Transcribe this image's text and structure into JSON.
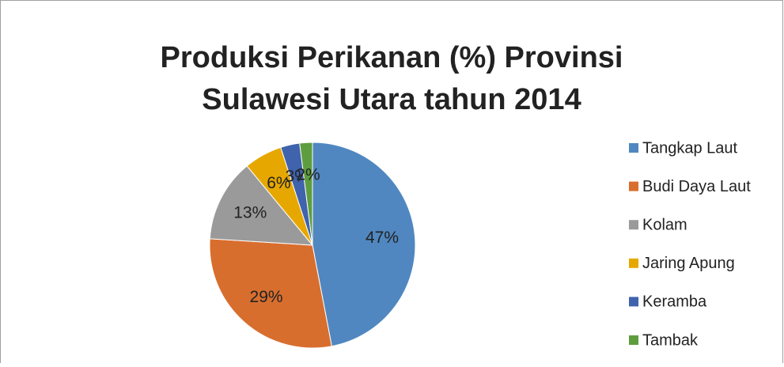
{
  "chart_data": {
    "type": "pie",
    "title": [
      "Produksi Perikanan (%) Provinsi",
      "Sulawesi Utara tahun 2014"
    ],
    "categories": [
      "Tangkap Laut",
      "Budi Daya Laut",
      "Kolam",
      "Jaring Apung",
      "Keramba",
      "Tambak"
    ],
    "values": [
      47,
      29,
      13,
      6,
      3,
      2
    ],
    "value_labels": [
      "47%",
      "29%",
      "13%",
      "6%",
      "3%",
      "2%"
    ],
    "colors": [
      "#5087c0",
      "#d86e2e",
      "#9a9a9a",
      "#e6a800",
      "#3f63ad",
      "#5e9d3e"
    ],
    "legend": "right"
  }
}
